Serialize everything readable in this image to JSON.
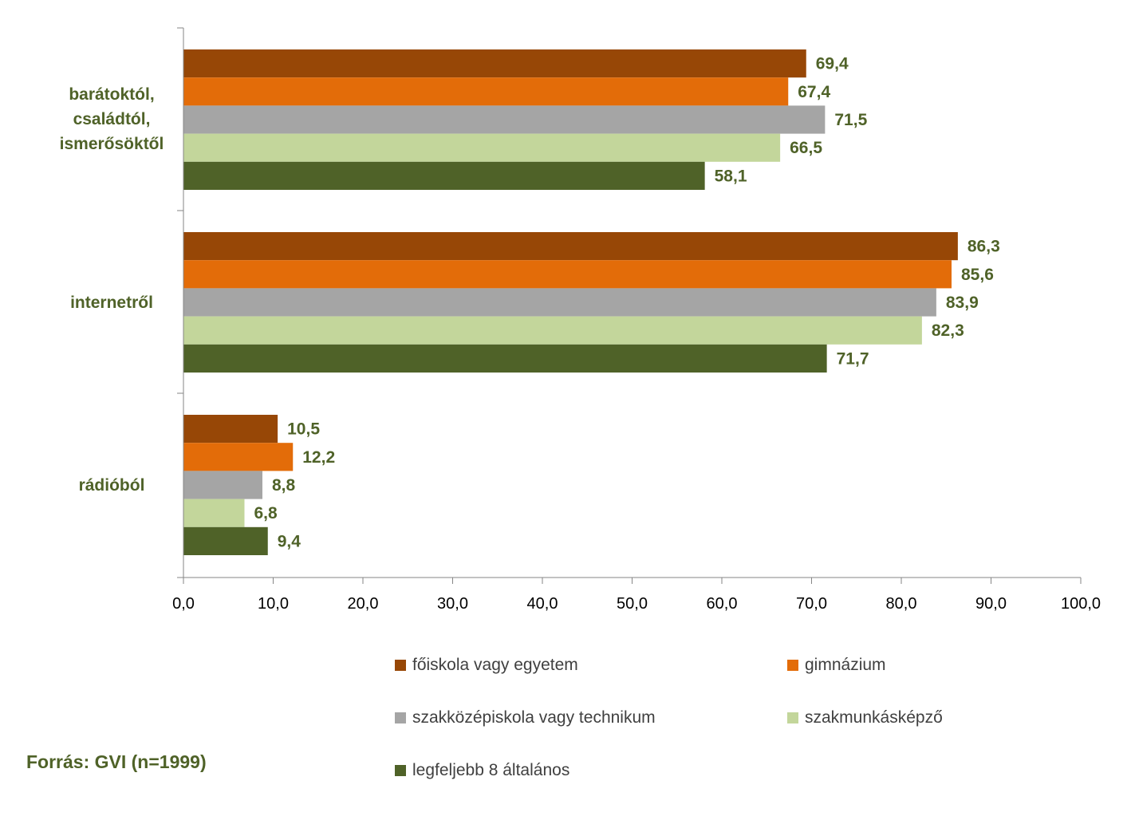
{
  "chart_data": {
    "type": "bar",
    "orientation": "horizontal",
    "categories": [
      "barátoktól, családtól, ismerősöktől",
      "internetről",
      "rádióból"
    ],
    "category_label_lines": [
      [
        "barátoktól,",
        "családtól,",
        "ismerősöktől"
      ],
      [
        "internetről"
      ],
      [
        "rádióból"
      ]
    ],
    "series": [
      {
        "name": "főiskola vagy egyetem",
        "color": "#974706",
        "values": [
          69.4,
          86.3,
          10.5
        ],
        "labels": [
          "69,4",
          "86,3",
          "10,5"
        ]
      },
      {
        "name": "gimnázium",
        "color": "#E36C09",
        "values": [
          67.4,
          85.6,
          12.2
        ],
        "labels": [
          "67,4",
          "85,6",
          "12,2"
        ]
      },
      {
        "name": "szakközépiskola vagy technikum",
        "color": "#A5A5A5",
        "values": [
          71.5,
          83.9,
          8.8
        ],
        "labels": [
          "71,5",
          "83,9",
          "8,8"
        ]
      },
      {
        "name": "szakmunkásképző",
        "color": "#C3D69B",
        "values": [
          66.5,
          82.3,
          6.8
        ],
        "labels": [
          "66,5",
          "82,3",
          "6,8"
        ]
      },
      {
        "name": "legfeljebb 8 általános",
        "color": "#4F6228",
        "values": [
          58.1,
          71.7,
          9.4
        ],
        "labels": [
          "58,1",
          "71,7",
          "9,4"
        ]
      }
    ],
    "x_ticks": [
      "0,0",
      "10,0",
      "20,0",
      "30,0",
      "40,0",
      "50,0",
      "60,0",
      "70,0",
      "80,0",
      "90,0",
      "100,0"
    ],
    "xlim": [
      0,
      100
    ],
    "grid": false,
    "legend_position": "bottom",
    "label_color": "#4F6228"
  },
  "source_text": "Forrás: GVI (n=1999)",
  "source_color": "#4F6228"
}
